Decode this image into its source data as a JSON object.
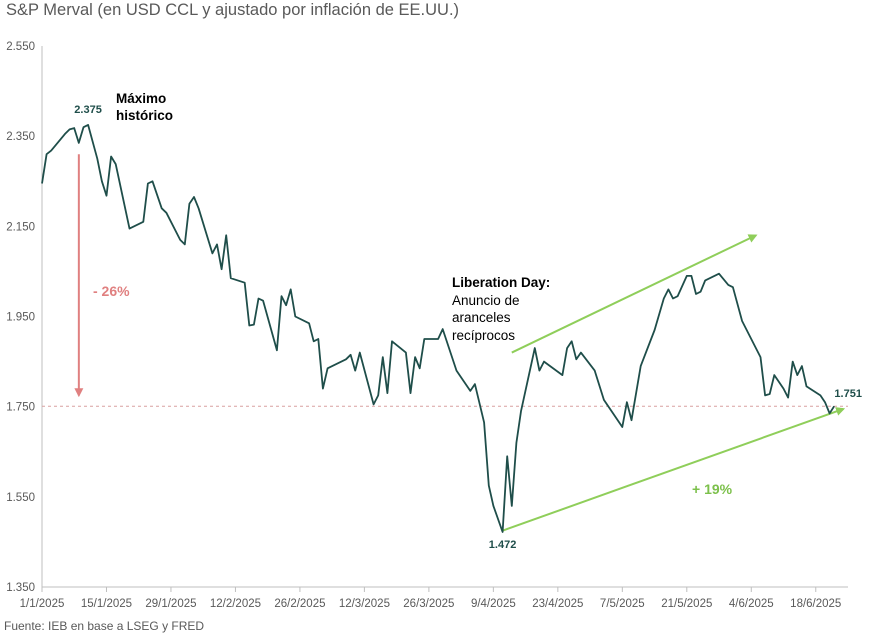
{
  "title": "S&P Merval (en USD CCL y ajustado por inflación de EE.UU.)",
  "source": "Fuente: IEB en base a LSEG y FRED",
  "colors": {
    "line": "#1f4e4a",
    "red": "#e08080",
    "green": "#8fce5a",
    "dashed": "#d9a0a0"
  },
  "chart_data": {
    "type": "line",
    "title": "S&P Merval (en USD CCL y ajustado por inflación de EE.UU.)",
    "xlabel": "",
    "ylabel": "",
    "ylim": [
      1350,
      2550
    ],
    "y_ticks": [
      1350,
      1550,
      1750,
      1950,
      2150,
      2350,
      2550
    ],
    "y_tick_labels": [
      "1.350",
      "1.550",
      "1.750",
      "1.950",
      "2.150",
      "2.350",
      "2.550"
    ],
    "x_range": [
      "2025-01-01",
      "2025-06-25"
    ],
    "x_ticks": [
      "2025-01-01",
      "2025-01-15",
      "2025-01-29",
      "2025-02-12",
      "2025-02-26",
      "2025-03-12",
      "2025-03-26",
      "2025-04-09",
      "2025-04-23",
      "2025-05-07",
      "2025-05-21",
      "2025-06-04",
      "2025-06-18"
    ],
    "x_tick_labels": [
      "1/1/2025",
      "15/1/2025",
      "29/1/2025",
      "12/2/2025",
      "26/2/2025",
      "12/3/2025",
      "26/3/2025",
      "9/4/2025",
      "23/4/2025",
      "7/5/2025",
      "21/5/2025",
      "4/6/2025",
      "18/6/2025"
    ],
    "grid": false,
    "reference_line": {
      "value": 1751,
      "style": "dashed"
    },
    "series": [
      {
        "points": [
          [
            "2025-01-01",
            2245
          ],
          [
            "2025-01-02",
            2310
          ],
          [
            "2025-01-03",
            2318
          ],
          [
            "2025-01-06",
            2355
          ],
          [
            "2025-01-07",
            2365
          ],
          [
            "2025-01-08",
            2368
          ],
          [
            "2025-01-09",
            2335
          ],
          [
            "2025-01-10",
            2370
          ],
          [
            "2025-01-11",
            2375
          ],
          [
            "2025-01-13",
            2300
          ],
          [
            "2025-01-14",
            2250
          ],
          [
            "2025-01-15",
            2218
          ],
          [
            "2025-01-16",
            2305
          ],
          [
            "2025-01-17",
            2288
          ],
          [
            "2025-01-20",
            2145
          ],
          [
            "2025-01-23",
            2160
          ],
          [
            "2025-01-24",
            2245
          ],
          [
            "2025-01-25",
            2250
          ],
          [
            "2025-01-27",
            2190
          ],
          [
            "2025-01-28",
            2180
          ],
          [
            "2025-01-31",
            2120
          ],
          [
            "2025-02-01",
            2110
          ],
          [
            "2025-02-02",
            2200
          ],
          [
            "2025-02-03",
            2215
          ],
          [
            "2025-02-04",
            2190
          ],
          [
            "2025-02-07",
            2090
          ],
          [
            "2025-02-08",
            2110
          ],
          [
            "2025-02-09",
            2055
          ],
          [
            "2025-02-10",
            2130
          ],
          [
            "2025-02-11",
            2035
          ],
          [
            "2025-02-14",
            2025
          ],
          [
            "2025-02-15",
            1930
          ],
          [
            "2025-02-16",
            1932
          ],
          [
            "2025-02-17",
            1990
          ],
          [
            "2025-02-18",
            1985
          ],
          [
            "2025-02-21",
            1875
          ],
          [
            "2025-02-22",
            1995
          ],
          [
            "2025-02-23",
            1975
          ],
          [
            "2025-02-24",
            2010
          ],
          [
            "2025-02-25",
            1950
          ],
          [
            "2025-02-28",
            1935
          ],
          [
            "2025-03-01",
            1895
          ],
          [
            "2025-03-02",
            1900
          ],
          [
            "2025-03-03",
            1790
          ],
          [
            "2025-03-04",
            1835
          ],
          [
            "2025-03-08",
            1855
          ],
          [
            "2025-03-09",
            1865
          ],
          [
            "2025-03-10",
            1830
          ],
          [
            "2025-03-11",
            1870
          ],
          [
            "2025-03-14",
            1755
          ],
          [
            "2025-03-15",
            1775
          ],
          [
            "2025-03-16",
            1860
          ],
          [
            "2025-03-17",
            1780
          ],
          [
            "2025-03-18",
            1895
          ],
          [
            "2025-03-21",
            1870
          ],
          [
            "2025-03-22",
            1780
          ],
          [
            "2025-03-23",
            1860
          ],
          [
            "2025-03-24",
            1835
          ],
          [
            "2025-03-25",
            1900
          ],
          [
            "2025-03-28",
            1900
          ],
          [
            "2025-03-29",
            1922
          ],
          [
            "2025-04-01",
            1830
          ],
          [
            "2025-04-04",
            1785
          ],
          [
            "2025-04-05",
            1800
          ],
          [
            "2025-04-07",
            1715
          ],
          [
            "2025-04-08",
            1575
          ],
          [
            "2025-04-09",
            1530
          ],
          [
            "2025-04-11",
            1472
          ],
          [
            "2025-04-12",
            1640
          ],
          [
            "2025-04-13",
            1530
          ],
          [
            "2025-04-14",
            1670
          ],
          [
            "2025-04-15",
            1740
          ],
          [
            "2025-04-18",
            1880
          ],
          [
            "2025-04-19",
            1830
          ],
          [
            "2025-04-20",
            1850
          ],
          [
            "2025-04-24",
            1820
          ],
          [
            "2025-04-25",
            1880
          ],
          [
            "2025-04-26",
            1895
          ],
          [
            "2025-04-27",
            1855
          ],
          [
            "2025-04-28",
            1870
          ],
          [
            "2025-05-01",
            1830
          ],
          [
            "2025-05-03",
            1765
          ],
          [
            "2025-05-07",
            1705
          ],
          [
            "2025-05-08",
            1760
          ],
          [
            "2025-05-09",
            1720
          ],
          [
            "2025-05-11",
            1840
          ],
          [
            "2025-05-14",
            1920
          ],
          [
            "2025-05-16",
            1990
          ],
          [
            "2025-05-17",
            2010
          ],
          [
            "2025-05-18",
            1990
          ],
          [
            "2025-05-19",
            1995
          ],
          [
            "2025-05-21",
            2040
          ],
          [
            "2025-05-22",
            2040
          ],
          [
            "2025-05-23",
            2000
          ],
          [
            "2025-05-24",
            2005
          ],
          [
            "2025-05-25",
            2030
          ],
          [
            "2025-05-28",
            2045
          ],
          [
            "2025-05-30",
            2020
          ],
          [
            "2025-05-31",
            2015
          ],
          [
            "2025-06-02",
            1940
          ],
          [
            "2025-06-05",
            1880
          ],
          [
            "2025-06-06",
            1860
          ],
          [
            "2025-06-07",
            1775
          ],
          [
            "2025-06-08",
            1778
          ],
          [
            "2025-06-09",
            1820
          ],
          [
            "2025-06-11",
            1790
          ],
          [
            "2025-06-12",
            1770
          ],
          [
            "2025-06-13",
            1850
          ],
          [
            "2025-06-14",
            1820
          ],
          [
            "2025-06-15",
            1840
          ],
          [
            "2025-06-16",
            1795
          ],
          [
            "2025-06-19",
            1775
          ],
          [
            "2025-06-20",
            1760
          ],
          [
            "2025-06-21",
            1735
          ],
          [
            "2025-06-22",
            1751
          ]
        ]
      }
    ],
    "data_labels": [
      {
        "text": "2.375",
        "x": "2025-01-11",
        "y": 2375
      },
      {
        "text": "1.472",
        "x": "2025-04-11",
        "y": 1472
      },
      {
        "text": "1.751",
        "x": "2025-06-22",
        "y": 1751
      }
    ],
    "annotations": {
      "max_label": [
        "Máximo",
        "histórico"
      ],
      "liberation_title": "Liberation Day:",
      "liberation_text": [
        "Anuncio de",
        "aranceles",
        "recíprocos"
      ],
      "drop_pct": "- 26%",
      "rise_pct": "+ 19%"
    }
  }
}
